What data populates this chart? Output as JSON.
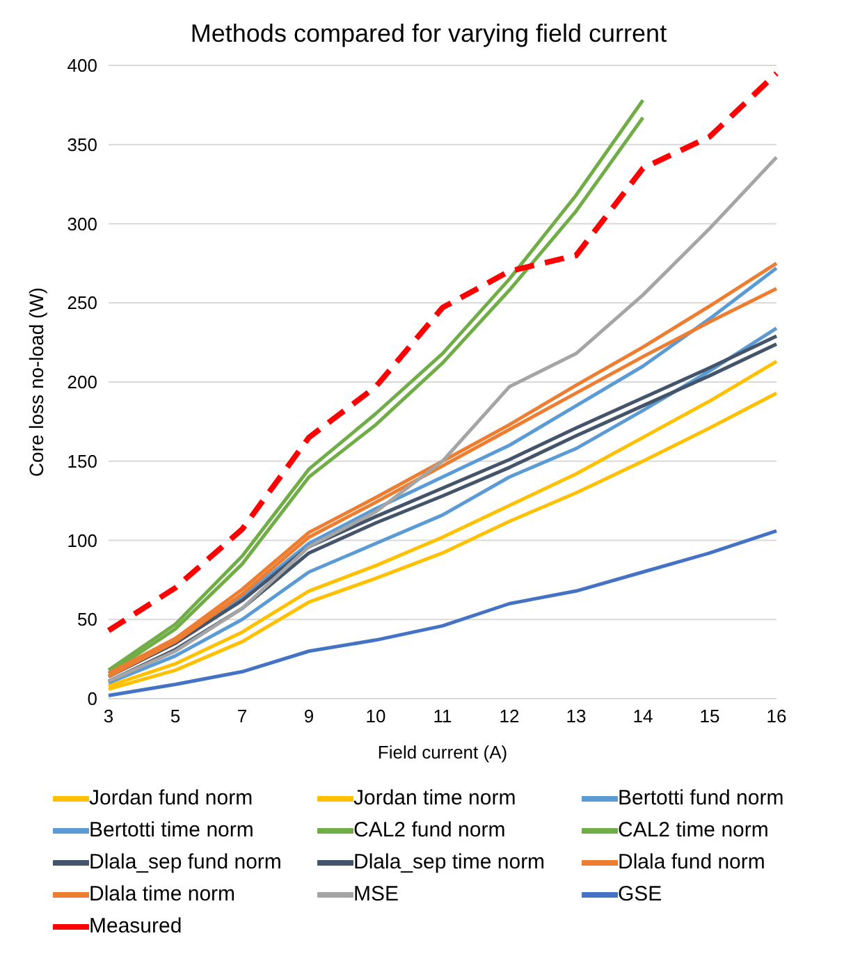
{
  "chart_data": {
    "type": "line",
    "title": "Methods compared for varying field current",
    "xlabel": "Field current (A)",
    "ylabel": "Core loss no-load (W)",
    "categories": [
      "3",
      "5",
      "7",
      "9",
      "10",
      "11",
      "12",
      "13",
      "14",
      "15",
      "16"
    ],
    "ylim": [
      0,
      400
    ],
    "yticks": [
      0,
      50,
      100,
      150,
      200,
      250,
      300,
      350,
      400
    ],
    "grid": "y",
    "legend": "bottom",
    "marker": "none",
    "series": [
      {
        "name": "Jordan fund norm",
        "color": "#ffc000",
        "values": [
          8,
          22,
          42,
          68,
          84,
          102,
          122,
          142,
          165,
          188,
          213
        ]
      },
      {
        "name": "Jordan time norm",
        "color": "#ffc000",
        "values": [
          6,
          18,
          36,
          61,
          76,
          92,
          112,
          130,
          150,
          171,
          193
        ]
      },
      {
        "name": "Bertotti fund norm",
        "color": "#5b9bd5",
        "values": [
          14,
          35,
          64,
          98,
          120,
          140,
          160,
          185,
          210,
          240,
          272
        ]
      },
      {
        "name": "Bertotti time norm",
        "color": "#5b9bd5",
        "values": [
          10,
          27,
          50,
          80,
          98,
          116,
          140,
          158,
          182,
          207,
          234
        ]
      },
      {
        "name": "CAL2 fund norm",
        "color": "#70ad47",
        "values": [
          18,
          47,
          90,
          145,
          180,
          218,
          265,
          318,
          378,
          null,
          null
        ]
      },
      {
        "name": "CAL2 time norm",
        "color": "#70ad47",
        "values": [
          16,
          44,
          85,
          140,
          173,
          212,
          258,
          308,
          367,
          null,
          null
        ]
      },
      {
        "name": "Dlala_sep fund norm",
        "color": "#44546a",
        "values": [
          14,
          35,
          62,
          96,
          115,
          133,
          151,
          171,
          190,
          209,
          229
        ]
      },
      {
        "name": "Dlala_sep time norm",
        "color": "#44546a",
        "values": [
          11,
          31,
          57,
          92,
          111,
          128,
          146,
          166,
          185,
          204,
          224
        ]
      },
      {
        "name": "Dlala fund norm",
        "color": "#ed7d31",
        "values": [
          16,
          38,
          69,
          105,
          127,
          150,
          173,
          198,
          222,
          248,
          275
        ]
      },
      {
        "name": "Dlala time norm",
        "color": "#ed7d31",
        "values": [
          14,
          36,
          66,
          102,
          124,
          147,
          170,
          193,
          216,
          238,
          259
        ]
      },
      {
        "name": "MSE",
        "color": "#a5a5a5",
        "values": [
          11,
          30,
          57,
          96,
          118,
          150,
          197,
          218,
          255,
          297,
          342
        ]
      },
      {
        "name": "GSE",
        "color": "#4472c4",
        "values": [
          2,
          9,
          17,
          30,
          37,
          46,
          60,
          68,
          80,
          92,
          106
        ]
      },
      {
        "name": "Measured",
        "color": "#ff0000",
        "line_style": "dashed",
        "values": [
          43,
          70,
          107,
          165,
          197,
          247,
          270,
          280,
          335,
          355,
          395
        ]
      }
    ]
  }
}
